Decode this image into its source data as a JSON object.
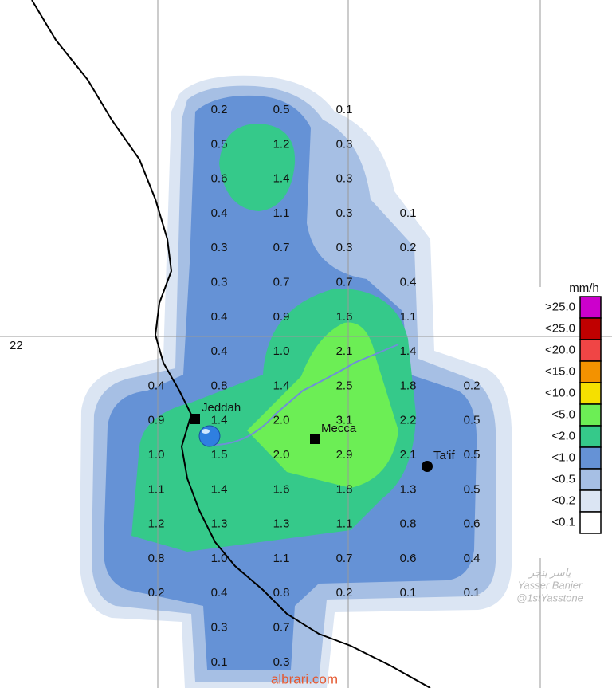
{
  "map": {
    "latitude_label": "22",
    "cities": [
      {
        "name": "Jeddah"
      },
      {
        "name": "Mecca"
      },
      {
        "name": "Ta‘if"
      }
    ],
    "watermark": {
      "arabic": "ياسر بنجر",
      "name": "Yasser Banjer",
      "handle": "@1stYasstone"
    },
    "site": "albrari.com"
  },
  "grid": {
    "rows": [
      [
        null,
        "0.2",
        "0.5",
        "0.1",
        null,
        null
      ],
      [
        null,
        "0.5",
        "1.2",
        "0.3",
        null,
        null
      ],
      [
        null,
        "0.6",
        "1.4",
        "0.3",
        null,
        null
      ],
      [
        null,
        "0.4",
        "1.1",
        "0.3",
        "0.1",
        null
      ],
      [
        null,
        "0.3",
        "0.7",
        "0.3",
        "0.2",
        null
      ],
      [
        null,
        "0.3",
        "0.7",
        "0.7",
        "0.4",
        null
      ],
      [
        null,
        "0.4",
        "0.9",
        "1.6",
        "1.1",
        null
      ],
      [
        null,
        "0.4",
        "1.0",
        "2.1",
        "1.4",
        null
      ],
      [
        "0.4",
        "0.8",
        "1.4",
        "2.5",
        "1.8",
        "0.2"
      ],
      [
        "0.9",
        "1.4",
        "2.0",
        "3.1",
        "2.2",
        "0.5"
      ],
      [
        "1.0",
        "1.5",
        "2.0",
        "2.9",
        "2.1",
        "0.5"
      ],
      [
        "1.1",
        "1.4",
        "1.6",
        "1.8",
        "1.3",
        "0.5"
      ],
      [
        "1.2",
        "1.3",
        "1.3",
        "1.1",
        "0.8",
        "0.6"
      ],
      [
        "0.8",
        "1.0",
        "1.1",
        "0.7",
        "0.6",
        "0.4"
      ],
      [
        "0.2",
        "0.4",
        "0.8",
        "0.2",
        "0.1",
        "0.1"
      ],
      [
        null,
        "0.3",
        "0.7",
        null,
        null,
        null
      ],
      [
        null,
        "0.1",
        "0.3",
        null,
        null,
        null
      ]
    ]
  },
  "legend": {
    "title": "mm/h",
    "items": [
      {
        "label": ">25.0",
        "color": "#cc00cc"
      },
      {
        "label": "<25.0",
        "color": "#c00000"
      },
      {
        "label": "<20.0",
        "color": "#f04545"
      },
      {
        "label": "<15.0",
        "color": "#f39200"
      },
      {
        "label": "<10.0",
        "color": "#f5e000"
      },
      {
        "label": "<5.0",
        "color": "#6cee55"
      },
      {
        "label": "<2.0",
        "color": "#35c98a"
      },
      {
        "label": "<1.0",
        "color": "#6592d6"
      },
      {
        "label": "<0.5",
        "color": "#a6bfe4"
      },
      {
        "label": "<0.2",
        "color": "#dbe5f3"
      },
      {
        "label": "<0.1",
        "color": "#ffffff"
      }
    ]
  }
}
